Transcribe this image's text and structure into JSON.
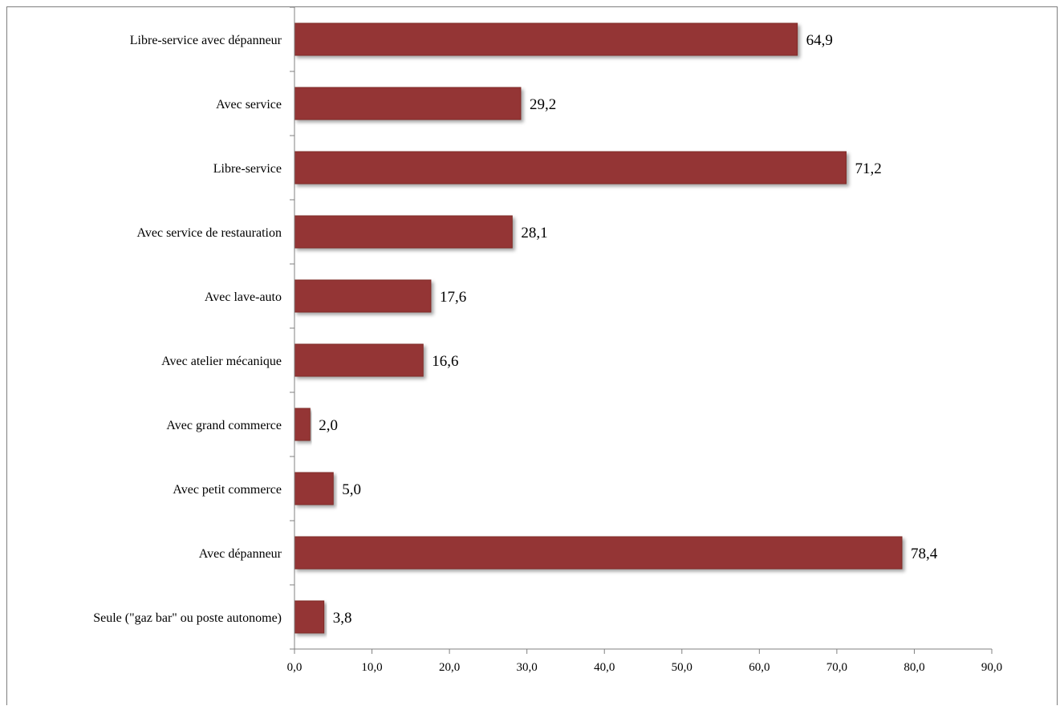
{
  "chart_data": {
    "type": "bar",
    "orientation": "horizontal",
    "categories": [
      "Libre-service avec dépanneur",
      "Avec service",
      "Libre-service",
      "Avec service de restauration",
      "Avec lave-auto",
      "Avec atelier mécanique",
      "Avec grand commerce",
      "Avec petit commerce",
      "Avec dépanneur",
      "Seule (\"gaz bar\" ou poste autonome)"
    ],
    "values": [
      64.9,
      29.2,
      71.2,
      28.1,
      17.6,
      16.6,
      2.0,
      5.0,
      78.4,
      3.8
    ],
    "value_labels": [
      "64,9",
      "29,2",
      "71,2",
      "28,1",
      "17,6",
      "16,6",
      "2,0",
      "5,0",
      "78,4",
      "3,8"
    ],
    "xlim": [
      0,
      90
    ],
    "x_ticks": [
      0,
      10,
      20,
      30,
      40,
      50,
      60,
      70,
      80,
      90
    ],
    "x_tick_labels": [
      "0,0",
      "10,0",
      "20,0",
      "30,0",
      "40,0",
      "50,0",
      "60,0",
      "70,0",
      "80,0",
      "90,0"
    ],
    "title": "",
    "xlabel": "",
    "ylabel": "",
    "grid": false,
    "legend": "none",
    "bar_color": "#943634",
    "bar_edge_color": "#7f2a28"
  }
}
